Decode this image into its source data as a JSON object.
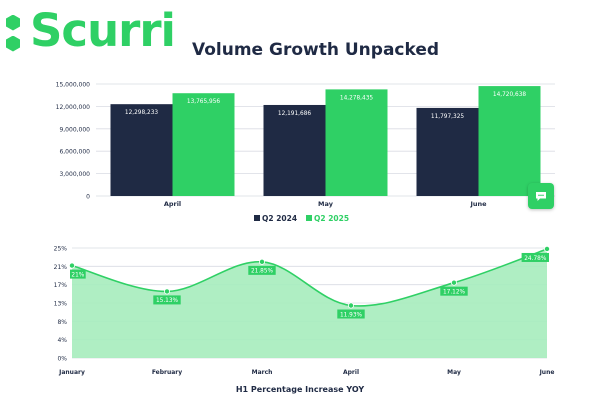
{
  "brand": {
    "name": "Scurri",
    "headline": "Volume Growth Unpacked",
    "accent": "#2fd065",
    "dark": "#1f2a44"
  },
  "chat": {
    "icon": "chat-bubble-icon"
  },
  "chart_data": [
    {
      "type": "bar",
      "categories": [
        "April",
        "May",
        "June"
      ],
      "series": [
        {
          "name": "Q2 2024",
          "color": "#1f2a44",
          "values": [
            12298233,
            12191686,
            11797325
          ],
          "labels": [
            "12,298,233",
            "12,191,686",
            "11,797,325"
          ]
        },
        {
          "name": "Q2 2025",
          "color": "#2fd065",
          "values": [
            13765956,
            14278435,
            14720638
          ],
          "labels": [
            "13,765,956",
            "14,278,435",
            "14,720,638"
          ]
        }
      ],
      "yticks": [
        "0",
        "3,000,000",
        "6,000,000",
        "9,000,000",
        "12,000,000",
        "15,000,000"
      ],
      "ylim": [
        0,
        15000000
      ],
      "legend_position": "bottom"
    },
    {
      "type": "area",
      "title": "H1 Percentage Increase YOY",
      "categories": [
        "January",
        "February",
        "March",
        "April",
        "May",
        "June"
      ],
      "values": [
        21,
        15.13,
        21.85,
        11.93,
        17.12,
        24.78
      ],
      "labels": [
        "21%",
        "15.13%",
        "21.85%",
        "11.93%",
        "17.12%",
        "24.78%"
      ],
      "yticks": [
        "0%",
        "4%",
        "8%",
        "13%",
        "17%",
        "21%",
        "25%"
      ],
      "ylim": [
        0,
        25
      ]
    }
  ]
}
